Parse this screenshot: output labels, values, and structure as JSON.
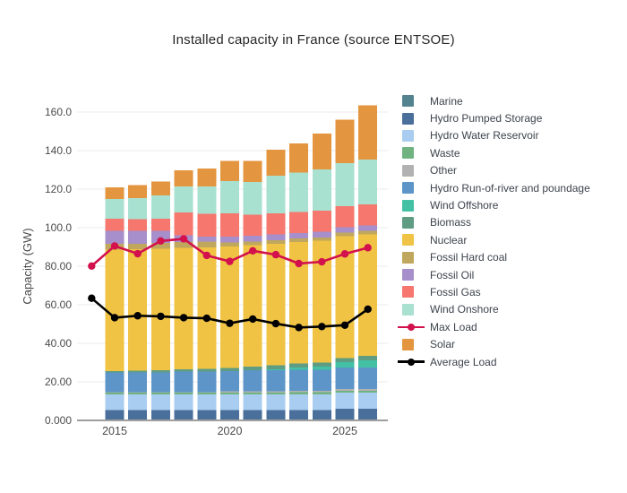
{
  "title": "Installed capacity in France (source ENTSOE)",
  "axes": {
    "y_label": "Capacity (GW)",
    "y_ticks": [
      {
        "value": 0,
        "label": "0.000"
      },
      {
        "value": 20,
        "label": "20.00"
      },
      {
        "value": 40,
        "label": "40.00"
      },
      {
        "value": 60,
        "label": "60.00"
      },
      {
        "value": 80,
        "label": "80.00"
      },
      {
        "value": 100,
        "label": "100.0"
      },
      {
        "value": 120,
        "label": "120.0"
      },
      {
        "value": 140,
        "label": "140.0"
      },
      {
        "value": 160,
        "label": "160.0"
      }
    ],
    "x_ticks": [
      {
        "value": 2015,
        "label": "2015"
      },
      {
        "value": 2020,
        "label": "2020"
      },
      {
        "value": 2025,
        "label": "2025"
      }
    ]
  },
  "legend": [
    {
      "label": "Marine",
      "color": "#54838f",
      "kind": "bar"
    },
    {
      "label": "Hydro Pumped Storage",
      "color": "#4a6f9b",
      "kind": "bar"
    },
    {
      "label": "Hydro Water Reservoir",
      "color": "#a9cdf0",
      "kind": "bar"
    },
    {
      "label": "Waste",
      "color": "#70b380",
      "kind": "bar"
    },
    {
      "label": "Other",
      "color": "#b2b2b2",
      "kind": "bar"
    },
    {
      "label": "Hydro Run-of-river and poundage",
      "color": "#5d95c8",
      "kind": "bar"
    },
    {
      "label": "Wind Offshore",
      "color": "#42c1a4",
      "kind": "bar"
    },
    {
      "label": "Biomass",
      "color": "#5e9d84",
      "kind": "bar"
    },
    {
      "label": "Nuclear",
      "color": "#f0c344",
      "kind": "bar"
    },
    {
      "label": "Fossil Hard coal",
      "color": "#c0a75e",
      "kind": "bar"
    },
    {
      "label": "Fossil Oil",
      "color": "#a68fca",
      "kind": "bar"
    },
    {
      "label": "Fossil Gas",
      "color": "#f5776e",
      "kind": "bar"
    },
    {
      "label": "Wind Onshore",
      "color": "#a9e1d1",
      "kind": "bar"
    },
    {
      "label": "Max Load",
      "color": "#d2114d",
      "kind": "line"
    },
    {
      "label": "Solar",
      "color": "#e4953f",
      "kind": "bar"
    },
    {
      "label": "Average Load",
      "color": "#000000",
      "kind": "line"
    }
  ],
  "chart_data": {
    "type": "bar",
    "stacked": true,
    "title": "Installed capacity in France (source ENTSOE)",
    "xlabel": "",
    "ylabel": "Capacity (GW)",
    "ylim": [
      0,
      160
    ],
    "grid": true,
    "legend_position": "right",
    "bar_x": [
      2015,
      2016,
      2017,
      2018,
      2019,
      2020,
      2021,
      2022,
      2023,
      2024,
      2025,
      2026
    ],
    "series": [
      {
        "name": "Marine",
        "color": "#54838f",
        "values": [
          0.24,
          0.24,
          0.24,
          0.24,
          0.24,
          0.24,
          0.24,
          0.24,
          0.24,
          0.24,
          0.24,
          0.24
        ]
      },
      {
        "name": "Hydro Pumped Storage",
        "color": "#4a6f9b",
        "values": [
          5.0,
          5.0,
          5.0,
          5.0,
          5.0,
          5.0,
          5.0,
          5.0,
          5.0,
          5.0,
          5.9,
          5.9
        ]
      },
      {
        "name": "Hydro Water Reservoir",
        "color": "#a9cdf0",
        "values": [
          8.2,
          8.2,
          8.2,
          8.2,
          8.2,
          8.2,
          8.2,
          8.2,
          8.2,
          8.2,
          8.2,
          8.2
        ]
      },
      {
        "name": "Waste",
        "color": "#70b380",
        "values": [
          0.9,
          0.9,
          0.9,
          0.9,
          0.9,
          1.0,
          1.0,
          1.0,
          1.1,
          1.1,
          1.1,
          1.1
        ]
      },
      {
        "name": "Other",
        "color": "#b2b2b2",
        "values": [
          0.3,
          0.3,
          0.3,
          0.3,
          0.3,
          0.6,
          0.6,
          0.6,
          0.8,
          0.8,
          0.8,
          0.8
        ]
      },
      {
        "name": "Hydro Run-of-river and poundage",
        "color": "#5d95c8",
        "values": [
          10.3,
          10.3,
          10.3,
          10.6,
          10.6,
          10.6,
          11.0,
          11.0,
          11.0,
          11.0,
          11.2,
          11.2
        ]
      },
      {
        "name": "Wind Offshore",
        "color": "#42c1a4",
        "values": [
          0,
          0,
          0,
          0,
          0,
          0,
          0,
          0.5,
          1.0,
          1.5,
          2.8,
          3.7
        ]
      },
      {
        "name": "Biomass",
        "color": "#5e9d84",
        "values": [
          0.6,
          0.8,
          1.0,
          1.2,
          1.4,
          1.6,
          1.8,
          2.0,
          2.1,
          2.2,
          2.2,
          2.3
        ]
      },
      {
        "name": "Nuclear",
        "color": "#f0c344",
        "values": [
          63.1,
          63.1,
          63.1,
          63.1,
          63.1,
          63.1,
          63.1,
          63.1,
          63.1,
          63.1,
          63.1,
          63.1
        ]
      },
      {
        "name": "Fossil Hard coal",
        "color": "#c0a75e",
        "values": [
          2.9,
          2.9,
          3.0,
          3.0,
          3.0,
          2.0,
          1.8,
          1.8,
          1.8,
          1.8,
          1.8,
          1.8
        ]
      },
      {
        "name": "Fossil Oil",
        "color": "#a68fca",
        "values": [
          6.9,
          6.6,
          6.3,
          3.4,
          2.6,
          3.0,
          3.0,
          3.0,
          2.9,
          2.9,
          2.9,
          2.9
        ]
      },
      {
        "name": "Fossil Gas",
        "color": "#f5776e",
        "values": [
          6.1,
          6.1,
          6.3,
          11.9,
          11.9,
          12.2,
          11.0,
          11.0,
          10.9,
          10.9,
          10.9,
          10.9
        ]
      },
      {
        "name": "Wind Onshore",
        "color": "#a9e1d1",
        "values": [
          10.3,
          10.9,
          12.0,
          13.5,
          14.2,
          16.6,
          17.0,
          19.5,
          20.5,
          21.5,
          22.3,
          23.2
        ]
      },
      {
        "name": "Solar",
        "color": "#e4953f",
        "values": [
          6.2,
          6.7,
          7.4,
          8.5,
          9.2,
          10.6,
          11.0,
          13.6,
          15.0,
          18.5,
          22.5,
          28.1
        ]
      }
    ],
    "lines": [
      {
        "name": "Max Load",
        "color": "#d2114d",
        "x": [
          2014,
          2015,
          2016,
          2017,
          2018,
          2019,
          2020,
          2021,
          2022,
          2023,
          2024,
          2025,
          2026
        ],
        "values": [
          80.1,
          90.5,
          86.5,
          93.1,
          94.2,
          85.6,
          82.5,
          88.0,
          86.0,
          81.4,
          82.3,
          86.4,
          89.6
        ]
      },
      {
        "name": "Average Load",
        "color": "#000000",
        "x": [
          2014,
          2015,
          2016,
          2017,
          2018,
          2019,
          2020,
          2021,
          2022,
          2023,
          2024,
          2025,
          2026
        ],
        "values": [
          63.4,
          53.3,
          54.3,
          54.0,
          53.3,
          53.0,
          50.4,
          52.6,
          50.2,
          48.2,
          48.7,
          49.4,
          57.7
        ]
      }
    ]
  },
  "style_colors": {
    "gridline": "#ebebeb",
    "axis_line": "#9e9e9e",
    "tick_text": "#4b4b4b",
    "legend_text": "#3d434d"
  }
}
